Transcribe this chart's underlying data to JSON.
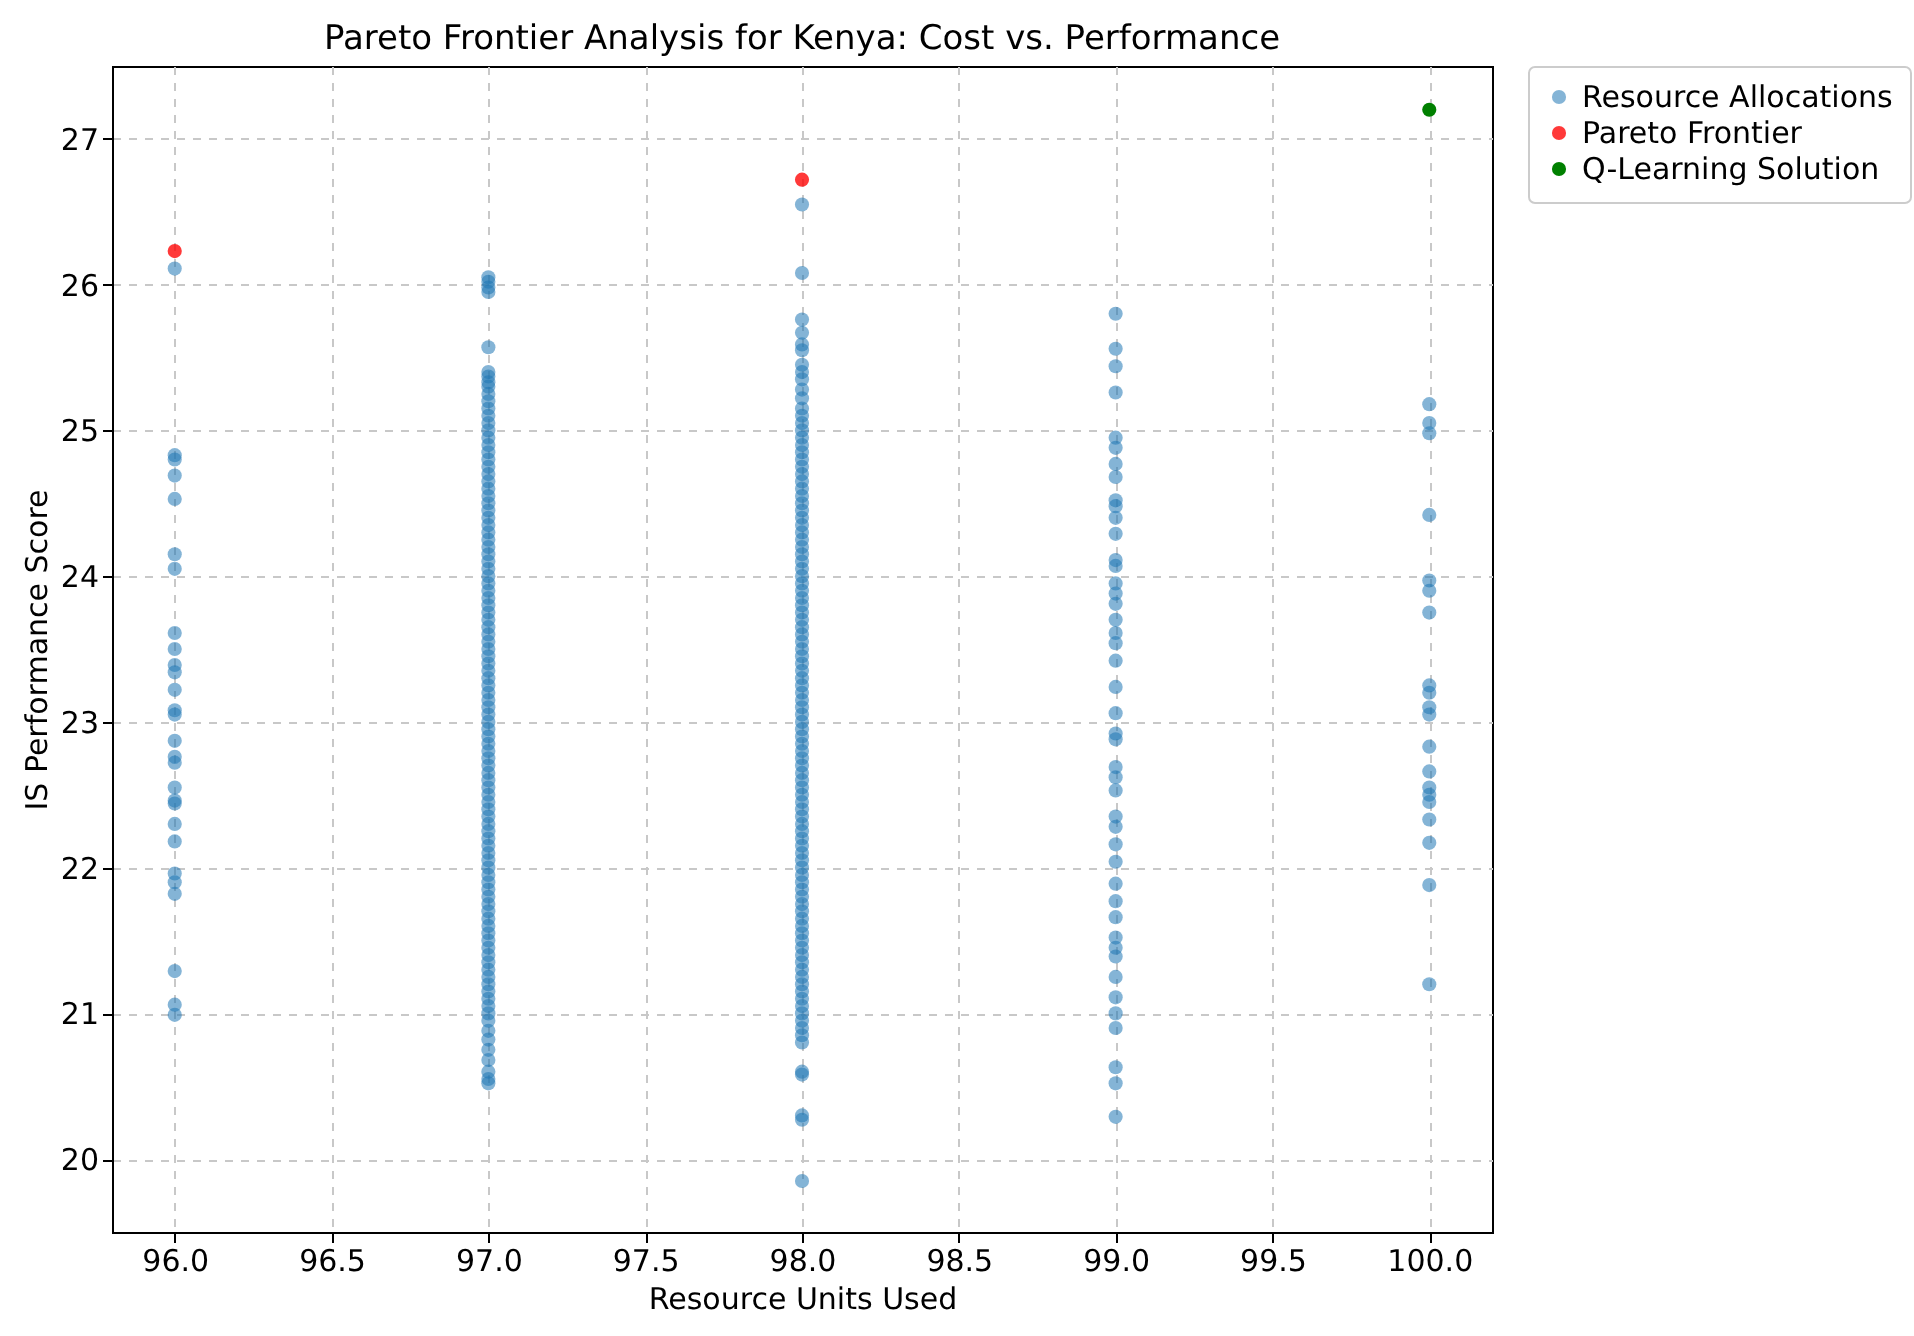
{
  "chart_data": {
    "type": "scatter",
    "title": "Pareto Frontier Analysis for Kenya: Cost vs. Performance",
    "xlabel": "Resource Units Used",
    "ylabel": "IS Performance Score",
    "xlim": [
      95.8,
      100.2
    ],
    "ylim": [
      19.5,
      27.5
    ],
    "xticks": [
      {
        "value": 96,
        "label": "96.0"
      },
      {
        "value": 96.5,
        "label": "96.5"
      },
      {
        "value": 97,
        "label": "97.0"
      },
      {
        "value": 97.5,
        "label": "97.5"
      },
      {
        "value": 98,
        "label": "98.0"
      },
      {
        "value": 98.5,
        "label": "98.5"
      },
      {
        "value": 99,
        "label": "99.0"
      },
      {
        "value": 99.5,
        "label": "99.5"
      },
      {
        "value": 100,
        "label": "100.0"
      }
    ],
    "yticks": [
      20,
      21,
      22,
      23,
      24,
      25,
      26,
      27
    ],
    "grid": true,
    "legend": "right",
    "marker": "circle",
    "series": [
      {
        "name": "Resource Allocations",
        "color": "#1f77b4",
        "x": [
          96,
          96,
          96,
          96,
          96,
          96,
          96,
          96,
          96,
          96,
          96,
          96,
          96,
          96,
          96,
          96,
          96,
          96,
          96,
          96,
          96,
          96,
          96,
          96,
          96,
          96,
          96,
          96,
          97,
          97,
          97,
          97,
          97,
          97,
          97,
          97,
          97,
          97,
          97,
          97,
          97,
          97,
          97,
          97,
          97,
          97,
          97,
          97,
          97,
          97,
          97,
          97,
          97,
          97,
          97,
          97,
          97,
          97,
          97,
          97,
          97,
          97,
          97,
          97,
          97,
          97,
          97,
          97,
          97,
          97,
          97,
          97,
          97,
          97,
          97,
          97,
          97,
          97,
          97,
          97,
          97,
          97,
          97,
          97,
          97,
          97,
          97,
          97,
          97,
          97,
          97,
          97,
          97,
          97,
          97,
          97,
          97,
          97,
          97,
          97,
          97,
          97,
          97,
          97,
          97,
          97,
          97,
          97,
          97,
          97,
          97,
          97,
          97,
          97,
          97,
          97,
          97,
          97,
          97,
          97,
          97,
          97,
          97,
          97,
          97,
          97,
          97,
          97,
          97,
          97,
          97,
          98,
          98,
          98,
          98,
          98,
          98,
          98,
          98,
          98,
          98,
          98,
          98,
          98,
          98,
          98,
          98,
          98,
          98,
          98,
          98,
          98,
          98,
          98,
          98,
          98,
          98,
          98,
          98,
          98,
          98,
          98,
          98,
          98,
          98,
          98,
          98,
          98,
          98,
          98,
          98,
          98,
          98,
          98,
          98,
          98,
          98,
          98,
          98,
          98,
          98,
          98,
          98,
          98,
          98,
          98,
          98,
          98,
          98,
          98,
          98,
          98,
          98,
          98,
          98,
          98,
          98,
          98,
          98,
          98,
          98,
          98,
          98,
          98,
          98,
          98,
          98,
          98,
          98,
          98,
          98,
          98,
          98,
          98,
          98,
          98,
          98,
          98,
          98,
          98,
          98,
          98,
          98,
          98,
          98,
          98,
          98,
          98,
          98,
          98,
          98,
          98,
          98,
          98,
          98,
          99,
          99,
          99,
          99,
          99,
          99,
          99,
          99,
          99,
          99,
          99,
          99,
          99,
          99,
          99,
          99,
          99,
          99,
          99,
          99,
          99,
          99,
          99,
          99,
          99,
          99,
          99,
          99,
          99,
          99,
          99,
          99,
          99,
          99,
          99,
          99,
          99,
          99,
          99,
          99,
          99,
          99,
          99,
          99,
          99,
          100,
          100,
          100,
          100,
          100,
          100,
          100,
          100,
          100,
          100,
          100,
          100,
          100,
          100,
          100,
          100,
          100,
          100,
          100,
          100
        ],
        "values": [
          26.11,
          24.83,
          24.8,
          24.69,
          24.53,
          24.15,
          24.05,
          23.61,
          23.5,
          23.39,
          23.34,
          23.22,
          23.08,
          23.05,
          22.87,
          22.76,
          22.72,
          22.55,
          22.46,
          22.44,
          22.3,
          22.18,
          21.96,
          21.9,
          21.82,
          21.29,
          21.06,
          20.99,
          26.05,
          26.02,
          25.98,
          25.95,
          25.57,
          25.4,
          25.37,
          25.33,
          25.3,
          25.25,
          25.2,
          25.15,
          25.1,
          25.05,
          25.0,
          24.95,
          24.9,
          24.85,
          24.8,
          24.75,
          24.7,
          24.65,
          24.6,
          24.55,
          24.5,
          24.45,
          24.4,
          24.35,
          24.3,
          24.25,
          24.2,
          24.15,
          24.1,
          24.05,
          24.0,
          23.95,
          23.9,
          23.85,
          23.8,
          23.75,
          23.7,
          23.65,
          23.6,
          23.55,
          23.5,
          23.45,
          23.4,
          23.35,
          23.3,
          23.25,
          23.2,
          23.15,
          23.1,
          23.05,
          23.0,
          22.95,
          22.9,
          22.85,
          22.8,
          22.75,
          22.7,
          22.65,
          22.6,
          22.55,
          22.5,
          22.45,
          22.4,
          22.35,
          22.3,
          22.25,
          22.2,
          22.15,
          22.1,
          22.05,
          22.0,
          21.95,
          21.9,
          21.85,
          21.8,
          21.75,
          21.7,
          21.65,
          21.6,
          21.55,
          21.5,
          21.45,
          21.4,
          21.35,
          21.3,
          21.25,
          21.2,
          21.15,
          21.1,
          21.05,
          21.0,
          20.95,
          20.88,
          20.82,
          20.75,
          20.68,
          20.6,
          20.55,
          20.52,
          26.55,
          26.08,
          25.76,
          25.67,
          25.59,
          25.55,
          25.45,
          25.4,
          25.35,
          25.28,
          25.22,
          25.15,
          25.1,
          25.05,
          25.0,
          24.95,
          24.9,
          24.85,
          24.8,
          24.75,
          24.7,
          24.65,
          24.6,
          24.55,
          24.5,
          24.45,
          24.4,
          24.35,
          24.3,
          24.25,
          24.2,
          24.15,
          24.1,
          24.05,
          24.0,
          23.95,
          23.9,
          23.85,
          23.8,
          23.75,
          23.7,
          23.65,
          23.6,
          23.55,
          23.5,
          23.45,
          23.4,
          23.35,
          23.3,
          23.25,
          23.2,
          23.15,
          23.1,
          23.05,
          23.0,
          22.95,
          22.9,
          22.85,
          22.8,
          22.75,
          22.7,
          22.65,
          22.6,
          22.55,
          22.5,
          22.45,
          22.4,
          22.35,
          22.3,
          22.25,
          22.2,
          22.15,
          22.1,
          22.05,
          22.0,
          21.95,
          21.9,
          21.85,
          21.8,
          21.75,
          21.7,
          21.65,
          21.6,
          21.55,
          21.5,
          21.45,
          21.4,
          21.35,
          21.3,
          21.25,
          21.2,
          21.15,
          21.1,
          21.05,
          21.0,
          20.95,
          20.9,
          20.85,
          20.8,
          20.6,
          20.58,
          20.3,
          20.27,
          19.85,
          25.8,
          25.56,
          25.44,
          25.26,
          24.95,
          24.88,
          24.77,
          24.68,
          24.52,
          24.48,
          24.4,
          24.29,
          24.11,
          24.07,
          23.95,
          23.88,
          23.81,
          23.7,
          23.61,
          23.54,
          23.42,
          23.24,
          23.06,
          22.92,
          22.88,
          22.69,
          22.62,
          22.53,
          22.35,
          22.28,
          22.16,
          22.04,
          21.89,
          21.77,
          21.66,
          21.52,
          21.45,
          21.39,
          21.25,
          21.11,
          21.0,
          20.9,
          20.63,
          20.52,
          20.29,
          25.18,
          25.05,
          24.98,
          24.42,
          23.97,
          23.9,
          23.75,
          23.25,
          23.2,
          23.1,
          23.05,
          22.83,
          22.66,
          22.55,
          22.5,
          22.45,
          22.33,
          22.17,
          21.88,
          21.2
        ]
      },
      {
        "name": "Pareto Frontier",
        "color": "#ff0000",
        "x": [
          96,
          98
        ],
        "values": [
          26.23,
          26.72
        ]
      },
      {
        "name": "Q-Learning Solution",
        "color": "#008000",
        "x": [
          100
        ],
        "values": [
          27.2
        ]
      }
    ]
  }
}
